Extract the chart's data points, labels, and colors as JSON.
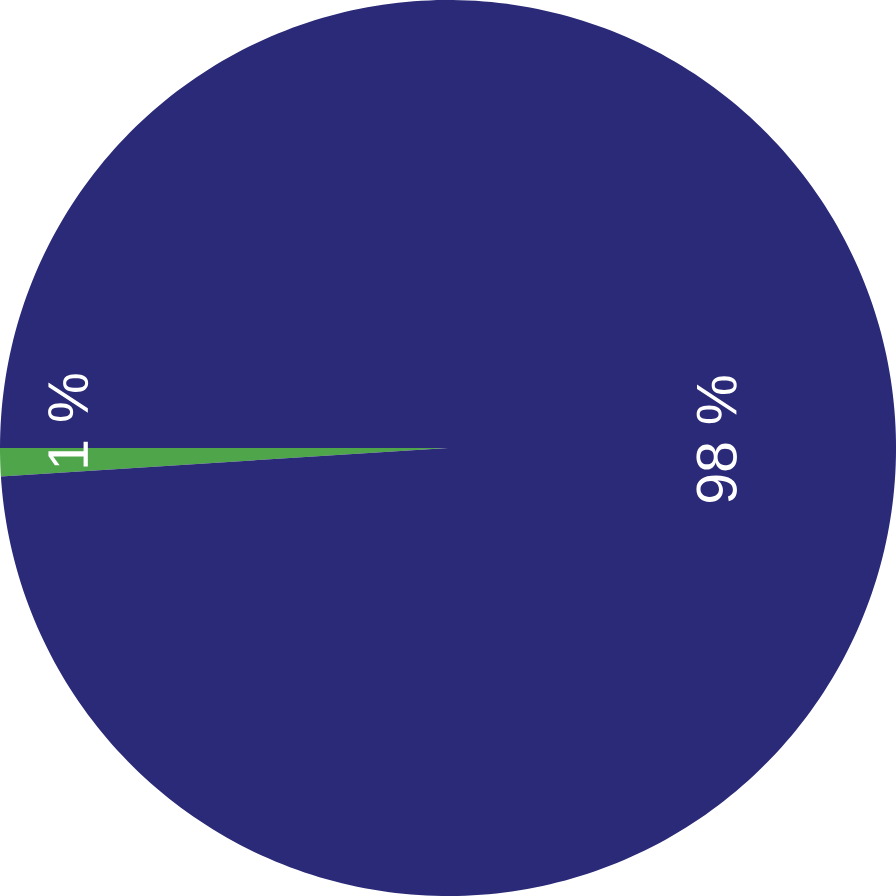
{
  "chart_data": {
    "type": "pie",
    "categories": [
      null,
      null
    ],
    "values": [
      1,
      98
    ],
    "colors": [
      "#4ea54a",
      "#2a2a78"
    ],
    "value_labels": [
      "1 %",
      "98 %"
    ]
  }
}
